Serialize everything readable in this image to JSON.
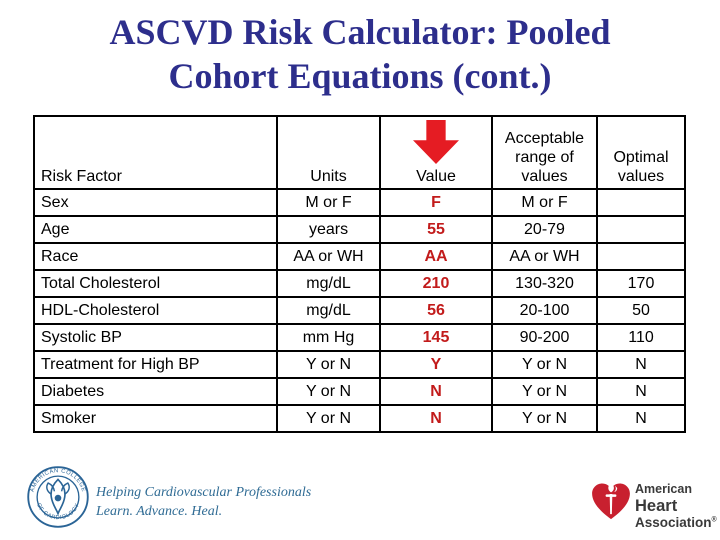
{
  "slide": {
    "title_line1": "ASCVD Risk Calculator: Pooled",
    "title_line2": "Cohort Equations (cont.)"
  },
  "table": {
    "headers": {
      "risk_factor": "Risk Factor",
      "units": "Units",
      "value": "Value",
      "acceptable_range": "Acceptable range of values",
      "optimal": "Optimal values"
    },
    "rows": [
      {
        "factor": "Sex",
        "units": "M or F",
        "value": "F",
        "range": "M or F",
        "optimal": ""
      },
      {
        "factor": "Age",
        "units": "years",
        "value": "55",
        "range": "20-79",
        "optimal": ""
      },
      {
        "factor": "Race",
        "units": "AA or WH",
        "value": "AA",
        "range": "AA or WH",
        "optimal": ""
      },
      {
        "factor": "Total Cholesterol",
        "units": "mg/dL",
        "value": "210",
        "range": "130-320",
        "optimal": "170"
      },
      {
        "factor": "HDL-Cholesterol",
        "units": "mg/dL",
        "value": "56",
        "range": "20-100",
        "optimal": "50"
      },
      {
        "factor": "Systolic BP",
        "units": "mm Hg",
        "value": "145",
        "range": "90-200",
        "optimal": "110"
      },
      {
        "factor": "Treatment for High BP",
        "units": "Y or N",
        "value": "Y",
        "range": "Y or N",
        "optimal": "N"
      },
      {
        "factor": "Diabetes",
        "units": "Y or N",
        "value": "N",
        "range": "Y or N",
        "optimal": "N"
      },
      {
        "factor": "Smoker",
        "units": "Y or N",
        "value": "N",
        "range": "Y or N",
        "optimal": "N"
      }
    ]
  },
  "footer": {
    "acc": {
      "seal_top_text": "AMERICAN COLLEGE",
      "seal_bottom_text": "OF CARDIOLOGY",
      "tagline_line1": "Helping Cardiovascular Professionals",
      "tagline_line2": "Learn. Advance. Heal."
    },
    "aha": {
      "line1": "American",
      "line2": "Heart",
      "line3": "Association",
      "registered": "®"
    }
  },
  "icons": {
    "value_arrow": "red-down-arrow"
  },
  "colors": {
    "title_navy": "#2D2E8C",
    "value_red": "#C21B1B",
    "arrow_red": "#E51C23",
    "acc_blue": "#2A6496",
    "tagline_blue": "#2F6B94",
    "aha_red": "#C8202F",
    "aha_text": "#3A3A3A",
    "table_border": "#000000"
  }
}
